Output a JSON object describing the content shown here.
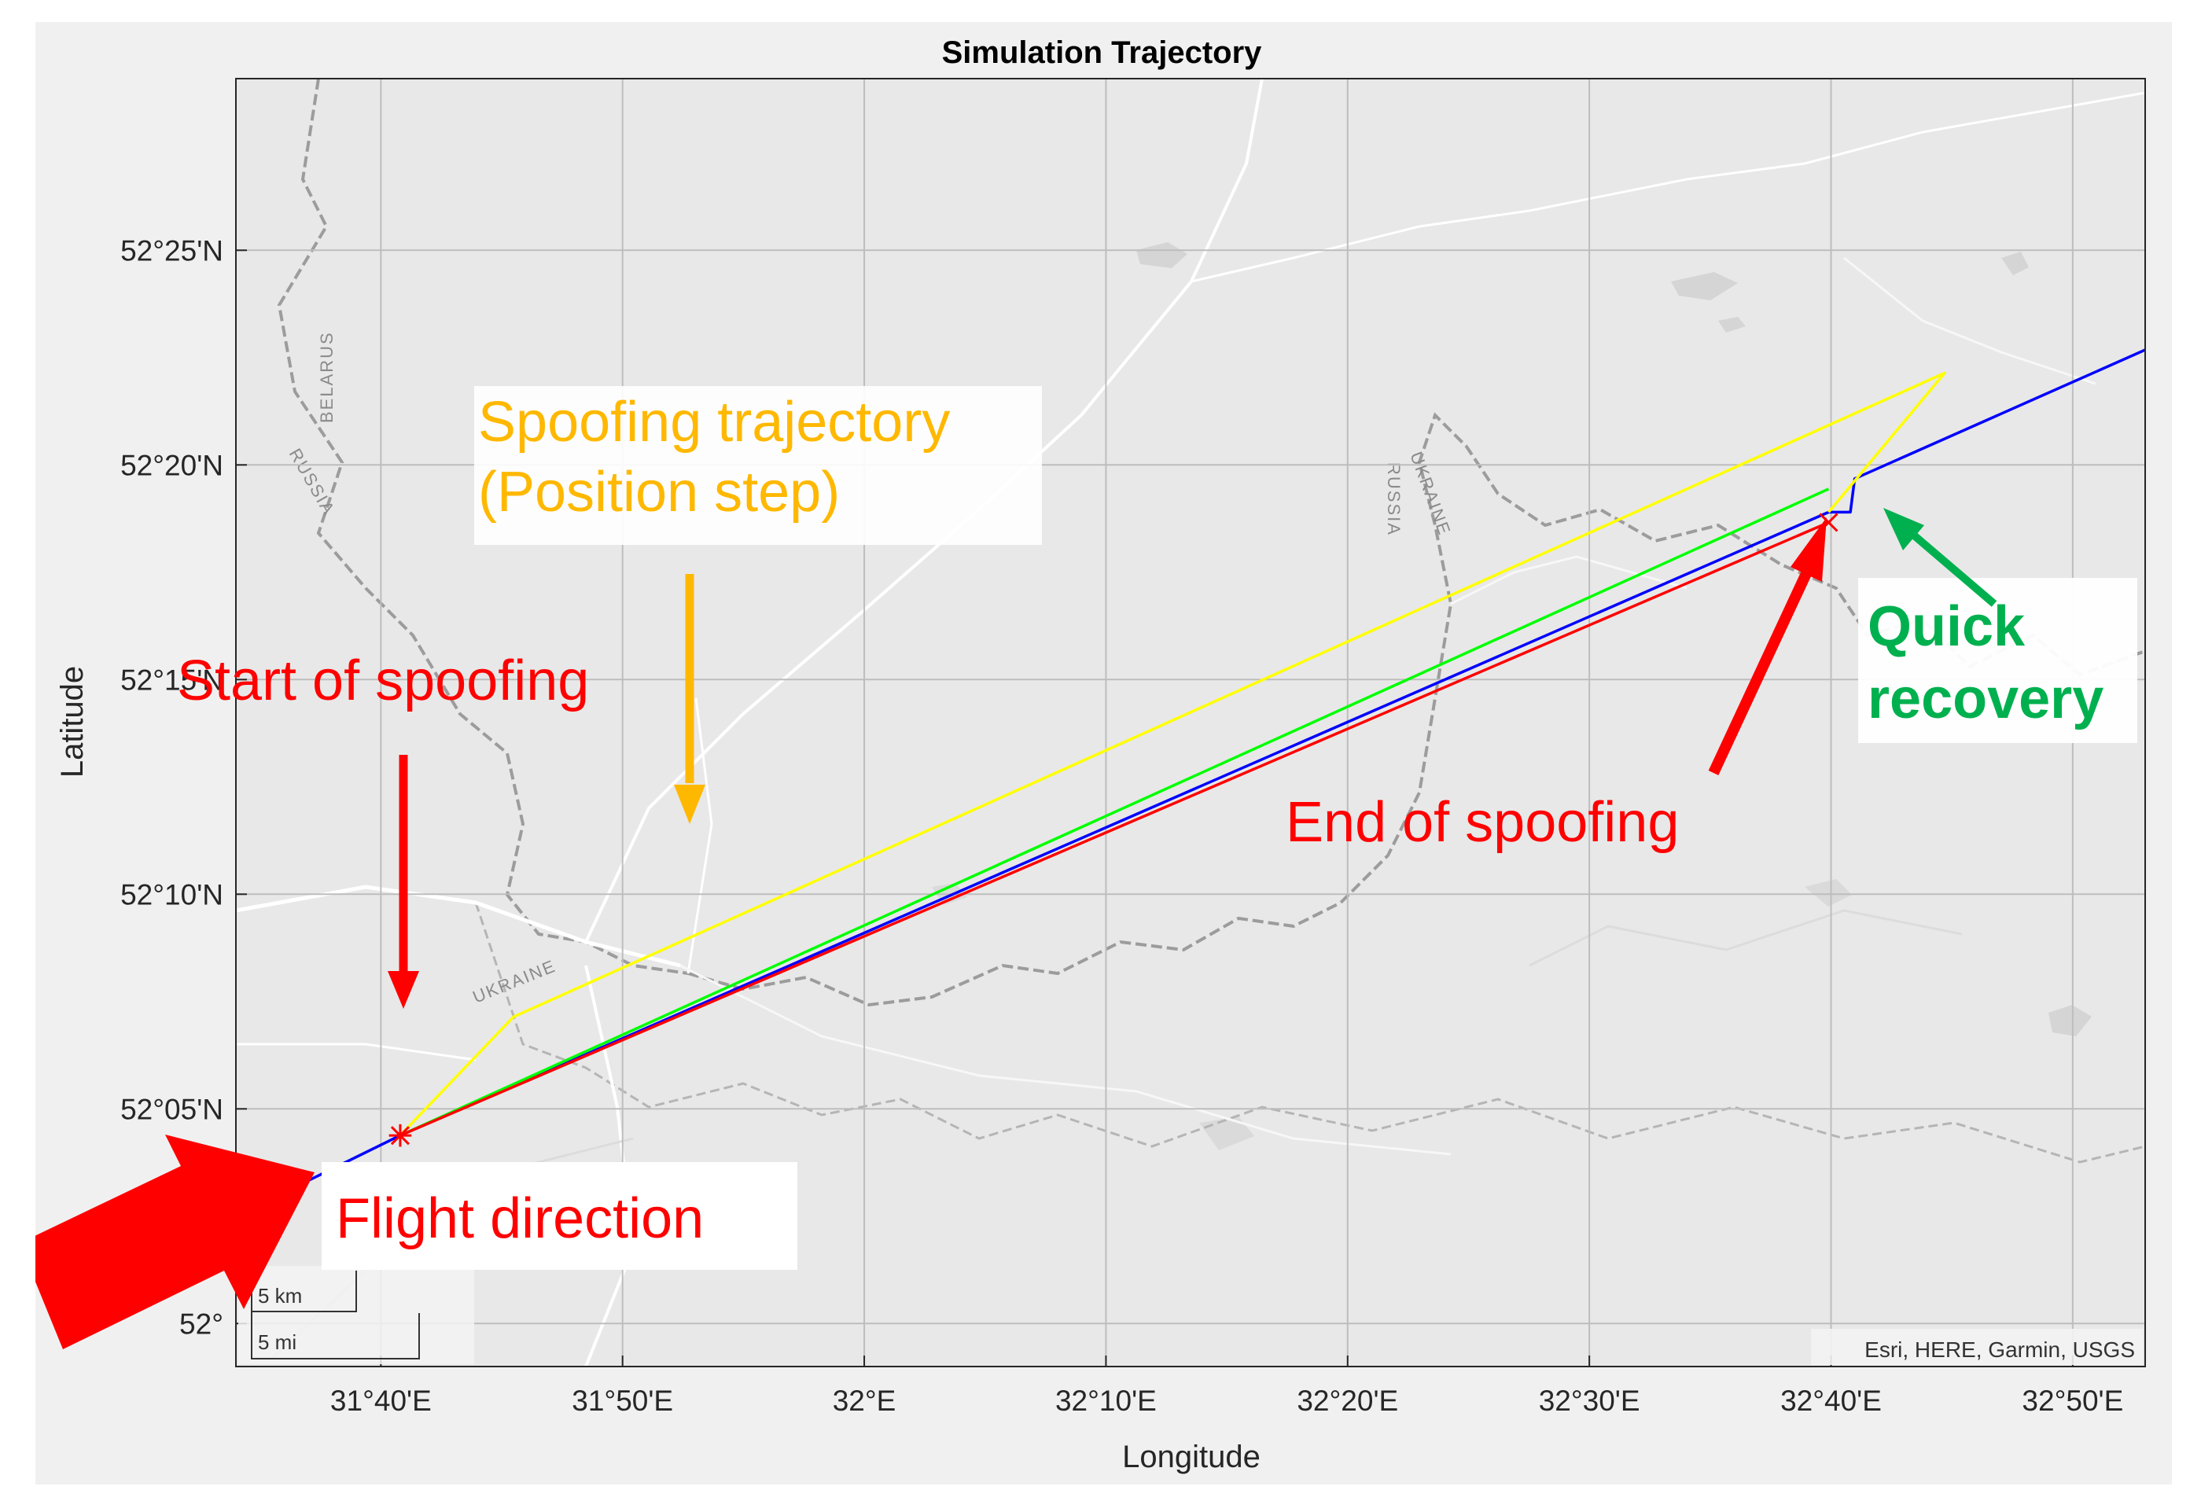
{
  "title": "Simulation Trajectory",
  "xlabel": "Longitude",
  "ylabel": "Latitude",
  "x_ticks": [
    "31°40'E",
    "31°50'E",
    "32°E",
    "32°10'E",
    "32°20'E",
    "32°30'E",
    "32°40'E",
    "32°50'E"
  ],
  "y_ticks": [
    "52°25'N",
    "52°20'N",
    "52°15'N",
    "52°10'N",
    "52°05'N",
    "52°"
  ],
  "attribution": "Esri, HERE, Garmin, USGS",
  "scale_bar": {
    "km": "5 km",
    "mi": "5 mi"
  },
  "country_labels": [
    "BELARUS",
    "RUSSIA",
    "UKRAINE",
    "RUSSIA",
    "UKRAINE"
  ],
  "annotations": {
    "spoofing_line1": "Spoofing trajectory",
    "spoofing_line2": "(Position step)",
    "start": "Start of spoofing",
    "end": "End of spoofing",
    "recovery_line1": "Quick",
    "recovery_line2": "recovery",
    "flight": "Flight direction"
  },
  "colors": {
    "true_path": "#0000ff",
    "spoofing": "#ffff00",
    "estimated": "#00ff00",
    "spoofed_receiver": "#ff0000",
    "annot_red": "#ff0000",
    "annot_orange": "#ffb800",
    "annot_green": "#00b04f"
  },
  "map_data": {
    "xlim_deg": [
      31.5667,
      32.8833
    ],
    "ylim_deg": [
      51.9833,
      52.4833
    ],
    "series": [
      {
        "color": "#0000ff",
        "lon": [
          31.5667,
          31.68,
          32.665,
          32.68,
          32.683,
          32.8833
        ],
        "lat": [
          52.0417,
          52.073,
          52.315,
          52.315,
          52.328,
          52.378
        ]
      },
      {
        "color": "#ffff00",
        "lon": [
          31.68,
          31.758,
          32.745,
          32.665
        ],
        "lat": [
          52.073,
          52.119,
          52.369,
          52.315
        ]
      },
      {
        "color": "#00ff00",
        "lon": [
          31.68,
          32.665
        ],
        "lat": [
          52.073,
          52.324
        ]
      },
      {
        "color": "#ff0000",
        "lon": [
          31.68,
          32.665
        ],
        "lat": [
          52.073,
          52.311
        ]
      }
    ],
    "markers": [
      {
        "symbol": "*",
        "lon": 31.68,
        "lat": 52.073
      },
      {
        "symbol": "x",
        "lon": 32.665,
        "lat": 52.311
      }
    ]
  }
}
